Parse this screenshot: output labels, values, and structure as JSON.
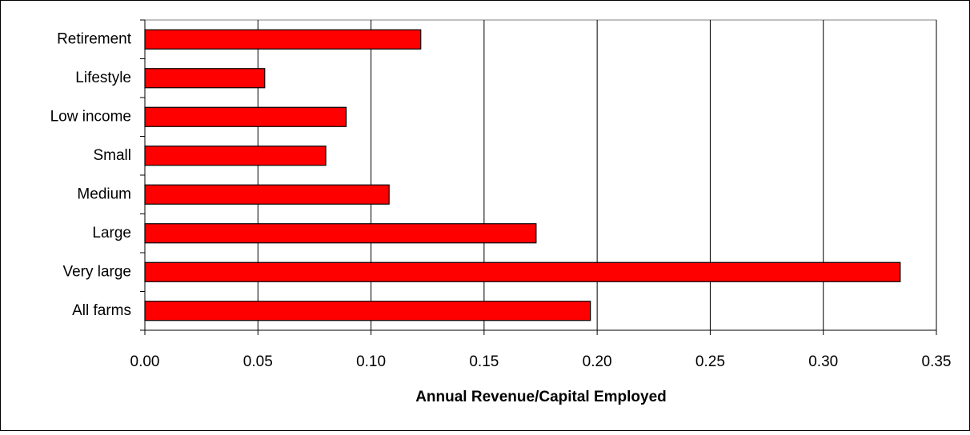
{
  "chart_data": {
    "type": "bar",
    "orientation": "horizontal",
    "x_label": "Annual Revenue/Capital Employed",
    "categories": [
      "Retirement",
      "Lifestyle",
      "Low income",
      "Small",
      "Medium",
      "Large",
      "Very large",
      "All farms"
    ],
    "values": [
      0.122,
      0.053,
      0.089,
      0.08,
      0.108,
      0.173,
      0.334,
      0.197
    ],
    "color": "#ff0000",
    "xlim": [
      0,
      0.35
    ],
    "xticks": [
      {
        "value": 0,
        "label": "0.00"
      },
      {
        "value": 0.05,
        "label": "0.05"
      },
      {
        "value": 0.1,
        "label": "0.10"
      },
      {
        "value": 0.15,
        "label": "0.15"
      },
      {
        "value": 0.2,
        "label": "0.20"
      },
      {
        "value": 0.25,
        "label": "0.25"
      },
      {
        "value": 0.3,
        "label": "0.30"
      },
      {
        "value": 0.35,
        "label": "0.35"
      }
    ],
    "grid": true
  }
}
